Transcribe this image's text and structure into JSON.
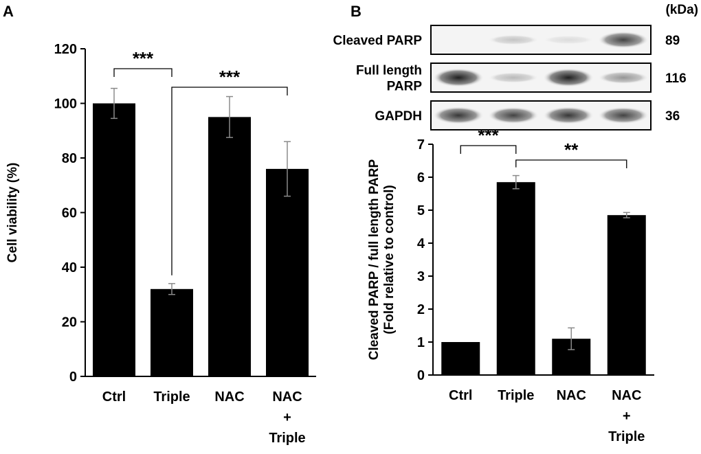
{
  "panels": {
    "a_label": "A",
    "b_label": "B"
  },
  "chart_data": [
    {
      "type": "bar",
      "panel": "A",
      "title": "",
      "ylabel": "Cell viability (%)",
      "ylim": [
        0,
        120
      ],
      "yticks": [
        0,
        20,
        40,
        60,
        80,
        100,
        120
      ],
      "categories": [
        [
          "Ctrl"
        ],
        [
          "Triple"
        ],
        [
          "NAC"
        ],
        [
          "NAC",
          "+",
          "Triple"
        ]
      ],
      "values": [
        100,
        32,
        95,
        76
      ],
      "errors": [
        5.5,
        2,
        7.5,
        10
      ],
      "bar_color": "#000000",
      "significance": [
        {
          "from": 0,
          "to": 1,
          "label": "***"
        },
        {
          "from": 1,
          "to": 3,
          "label": "***"
        }
      ]
    },
    {
      "type": "bar",
      "panel": "B",
      "title": "",
      "ylabel": [
        "Cleaved PARP / full length PARP",
        "(Fold relative to control)"
      ],
      "ylim": [
        0,
        7
      ],
      "yticks": [
        0,
        1,
        2,
        3,
        4,
        5,
        6,
        7
      ],
      "categories": [
        [
          "Ctrl"
        ],
        [
          "Triple"
        ],
        [
          "NAC"
        ],
        [
          "NAC",
          "+",
          "Triple"
        ]
      ],
      "values": [
        1,
        5.85,
        1.1,
        4.85
      ],
      "errors": [
        0,
        0.2,
        0.33,
        0.08
      ],
      "bar_color": "#000000",
      "significance": [
        {
          "from": 0,
          "to": 1,
          "label": "***"
        },
        {
          "from": 1,
          "to": 3,
          "label": "**"
        }
      ]
    }
  ],
  "western_blot": {
    "unit_label": "(kDa)",
    "rows": [
      {
        "label": [
          "Cleaved PARP"
        ],
        "kda": "89",
        "intensities": [
          0.0,
          0.25,
          0.15,
          0.8
        ]
      },
      {
        "label": [
          "Full length",
          "PARP"
        ],
        "kda": "116",
        "intensities": [
          0.95,
          0.3,
          0.95,
          0.45
        ]
      },
      {
        "label": [
          "GAPDH"
        ],
        "kda": "36",
        "intensities": [
          0.85,
          0.8,
          0.85,
          0.8
        ]
      }
    ]
  }
}
